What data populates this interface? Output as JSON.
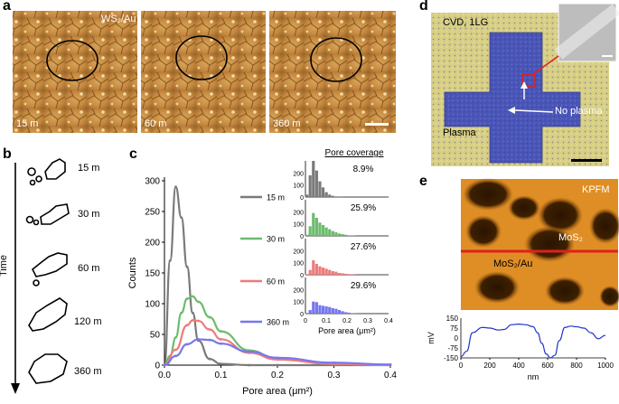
{
  "panels": {
    "a": {
      "label": "a",
      "sample": "WS₂/Au",
      "times": [
        "15 m",
        "60 m",
        "360 m"
      ]
    },
    "b": {
      "label": "b",
      "axis_label": "Time",
      "times": [
        "15 m",
        "30 m",
        "60 m",
        "120 m",
        "360 m"
      ]
    },
    "c": {
      "label": "c"
    },
    "d": {
      "label": "d",
      "title": "CVD, 1LG",
      "region_plasma": "Plasma",
      "region_no_plasma": "No plasma"
    },
    "e": {
      "label": "e",
      "mode": "KPFM",
      "label_top": "MoS₂",
      "label_bottom": "MoS₂/Au"
    }
  },
  "chart_data": [
    {
      "type": "line",
      "xlabel": "Pore area (μm²)",
      "ylabel": "Counts",
      "xlim": [
        0,
        0.4
      ],
      "ylim": [
        0,
        300
      ],
      "x_ticks": [
        "0.0",
        "0.1",
        "0.2",
        "0.3",
        "0.4"
      ],
      "y_ticks": [
        "0",
        "50",
        "100",
        "150",
        "200",
        "250",
        "300"
      ],
      "legend": [
        "15 m",
        "30 m",
        "60 m",
        "360 m"
      ],
      "series": [
        {
          "name": "15 m",
          "color": "#7a7a7a",
          "x": [
            0.0,
            0.01,
            0.02,
            0.03,
            0.04,
            0.05,
            0.06,
            0.08,
            0.1,
            0.15,
            0.2,
            0.3,
            0.4
          ],
          "y": [
            0,
            170,
            290,
            240,
            160,
            85,
            40,
            10,
            2,
            0,
            0,
            0,
            0
          ]
        },
        {
          "name": "30 m",
          "color": "#6dbb6d",
          "x": [
            0.0,
            0.01,
            0.02,
            0.03,
            0.04,
            0.05,
            0.06,
            0.08,
            0.1,
            0.15,
            0.2,
            0.3,
            0.4
          ],
          "y": [
            0,
            15,
            45,
            85,
            108,
            112,
            103,
            78,
            55,
            24,
            10,
            2,
            0
          ]
        },
        {
          "name": "60 m",
          "color": "#ee7b7b",
          "x": [
            0.0,
            0.02,
            0.04,
            0.05,
            0.06,
            0.08,
            0.1,
            0.15,
            0.2,
            0.3,
            0.4
          ],
          "y": [
            0,
            25,
            65,
            73,
            72,
            58,
            42,
            20,
            9,
            2,
            0
          ]
        },
        {
          "name": "360 m",
          "color": "#7777ee",
          "x": [
            0.0,
            0.02,
            0.04,
            0.06,
            0.08,
            0.1,
            0.15,
            0.2,
            0.3,
            0.4
          ],
          "y": [
            0,
            15,
            34,
            42,
            41,
            35,
            22,
            12,
            4,
            1
          ]
        }
      ]
    },
    {
      "type": "bar",
      "xlabel": "Pore area (μm²)",
      "title": "Pore coverage",
      "xlim": [
        0,
        0.4
      ],
      "x_ticks": [
        "0",
        "0.1",
        "0.2",
        "0.3",
        "0.4"
      ],
      "y_ticks": [
        "0",
        "100",
        "200"
      ],
      "series": [
        {
          "name": "15 m",
          "coverage": "8.9%",
          "color": "#7a7a7a",
          "values": [
            20,
            180,
            300,
            220,
            130,
            80,
            40,
            20,
            10,
            5,
            2,
            1,
            0,
            0,
            0,
            0
          ]
        },
        {
          "name": "30 m",
          "coverage": "25.9%",
          "color": "#6dbb6d",
          "values": [
            10,
            80,
            190,
            150,
            110,
            90,
            70,
            55,
            40,
            30,
            20,
            15,
            10,
            5,
            3,
            1
          ]
        },
        {
          "name": "60 m",
          "coverage": "27.6%",
          "color": "#ee7b7b",
          "values": [
            5,
            40,
            120,
            90,
            70,
            60,
            50,
            40,
            30,
            25,
            15,
            12,
            8,
            5,
            3,
            1
          ]
        },
        {
          "name": "360 m",
          "coverage": "29.6%",
          "color": "#7777ee",
          "values": [
            5,
            30,
            100,
            95,
            70,
            65,
            60,
            55,
            45,
            40,
            30,
            20,
            12,
            8,
            4,
            2
          ]
        }
      ]
    },
    {
      "type": "line",
      "xlabel": "nm",
      "ylabel": "mV",
      "xlim": [
        0,
        1000
      ],
      "ylim": [
        -150,
        150
      ],
      "x_ticks": [
        "0",
        "200",
        "400",
        "600",
        "800",
        "1000"
      ],
      "y_ticks": [
        "150",
        "75",
        "0",
        "-75",
        "-150"
      ],
      "series": [
        {
          "color": "#2233cc",
          "x": [
            0,
            40,
            80,
            150,
            200,
            260,
            300,
            350,
            400,
            450,
            500,
            530,
            560,
            590,
            620,
            650,
            680,
            720,
            760,
            800,
            850,
            900,
            950,
            1000
          ],
          "y": [
            -140,
            -100,
            40,
            80,
            75,
            60,
            65,
            100,
            105,
            100,
            85,
            40,
            -40,
            -120,
            -150,
            -130,
            -20,
            80,
            90,
            85,
            75,
            40,
            -5,
            20
          ]
        }
      ]
    }
  ]
}
